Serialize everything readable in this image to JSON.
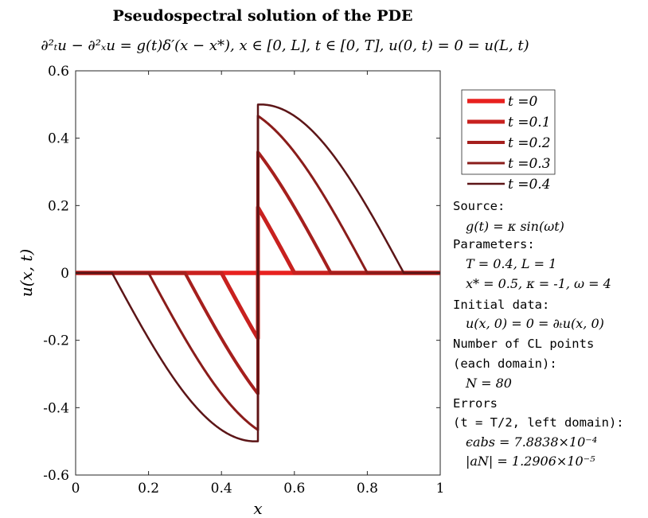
{
  "chart_data": {
    "type": "line",
    "title": "Pseudospectral solution of the PDE",
    "subtitle": "∂²ₜu − ∂²ₓu = g(t)δ′(x − x*),  x ∈ [0, L],  t ∈ [0, T],  u(0, t) = 0 = u(L, t)",
    "xlabel": "x",
    "ylabel": "u(x, t)",
    "xlim": [
      0,
      1
    ],
    "ylim": [
      -0.6,
      0.6
    ],
    "xticks": [
      "0",
      "0.2",
      "0.4",
      "0.6",
      "0.8",
      "1"
    ],
    "yticks": [
      "-0.6",
      "-0.4",
      "-0.2",
      "0",
      "0.2",
      "0.4",
      "0.6"
    ],
    "xtick_values": [
      0,
      0.2,
      0.4,
      0.6,
      0.8,
      1
    ],
    "ytick_values": [
      -0.6,
      -0.4,
      -0.2,
      0,
      0.2,
      0.4,
      0.6
    ],
    "grid": false,
    "legend_position": "top-right",
    "source": {
      "x_star": 0.5,
      "kappa": -1,
      "omega": 4
    },
    "series": [
      {
        "name": "t = 0",
        "t": 0,
        "color": "#e8211f",
        "width": 5.5
      },
      {
        "name": "t = 0.1",
        "t": 0.1,
        "color": "#c8211f",
        "width": 5
      },
      {
        "name": "t = 0.2",
        "t": 0.2,
        "color": "#a51f1d",
        "width": 4
      },
      {
        "name": "t = 0.3",
        "t": 0.3,
        "color": "#8a1c1a",
        "width": 3
      },
      {
        "name": "t = 0.4",
        "t": 0.4,
        "color": "#5c1517",
        "width": 2.5
      }
    ]
  },
  "legend": {
    "entries": [
      {
        "prefix": "t",
        "eq": "=",
        "value": "0"
      },
      {
        "prefix": "t",
        "eq": "=",
        "value": "0.1"
      },
      {
        "prefix": "t",
        "eq": "=",
        "value": "0.2"
      },
      {
        "prefix": "t",
        "eq": "=",
        "value": "0.3"
      },
      {
        "prefix": "t",
        "eq": "=",
        "value": "0.4"
      }
    ]
  },
  "annotation": {
    "source_label": "Source:",
    "source_formula": "g(t) = κ sin(ωt)",
    "parameters_label": "Parameters:",
    "params_line1": "T = 0.4, L = 1",
    "params_line2": "x* = 0.5, κ = -1, ω = 4",
    "initial_label": "Initial data:",
    "initial_formula": "u(x, 0) = 0 = ∂ₜu(x, 0)",
    "cl_label_line1": "Number of CL points",
    "cl_label_line2": "(each domain):",
    "cl_value": "N = 80",
    "errors_label": "Errors",
    "errors_context": "(t = T/2, left domain):",
    "err_abs": "ϵabs = 7.8838×10⁻⁴",
    "err_aN": "|aN| = 1.2906×10⁻⁵"
  }
}
